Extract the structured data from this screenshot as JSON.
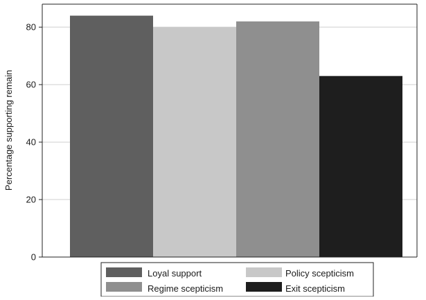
{
  "chart_data": {
    "type": "bar",
    "title": "",
    "xlabel": "",
    "ylabel": "Percentage supporting remain",
    "ylim": [
      0,
      88
    ],
    "yticks": [
      0,
      20,
      40,
      60,
      80
    ],
    "grid": "horizontal",
    "legend_position": "bottom",
    "series": [
      {
        "name": "Loyal support",
        "value": 84,
        "color": "#5f5f5f"
      },
      {
        "name": "Policy scepticism",
        "value": 80,
        "color": "#c8c8c8"
      },
      {
        "name": "Regime scepticism",
        "value": 82,
        "color": "#8f8f8f"
      },
      {
        "name": "Exit scepticism",
        "value": 63,
        "color": "#1e1e1e"
      }
    ]
  }
}
